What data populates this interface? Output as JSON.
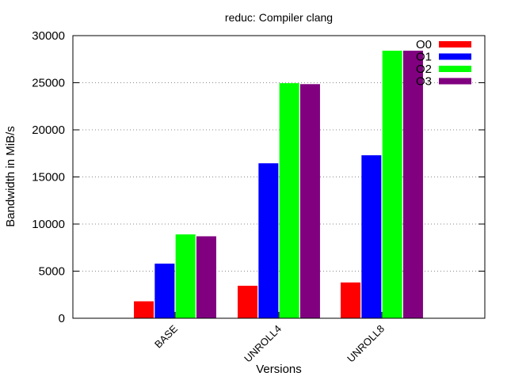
{
  "chart_data": {
    "type": "bar",
    "title": "reduc: Compiler clang",
    "xlabel": "Versions",
    "ylabel": "Bandwidth in MiB/s",
    "ylim": [
      0,
      30000
    ],
    "yticks": [
      0,
      5000,
      10000,
      15000,
      20000,
      25000,
      30000
    ],
    "categories": [
      "BASE",
      "UNROLL4",
      "UNROLL8"
    ],
    "series": [
      {
        "name": "O0",
        "color": "#ff0000",
        "values": [
          1800,
          3450,
          3800
        ]
      },
      {
        "name": "O1",
        "color": "#0000ff",
        "values": [
          5800,
          16450,
          17300
        ]
      },
      {
        "name": "O2",
        "color": "#00ff00",
        "values": [
          8900,
          24950,
          28400
        ]
      },
      {
        "name": "O3",
        "color": "#800080",
        "values": [
          8700,
          24850,
          28400
        ]
      }
    ],
    "grid": "y-dotted",
    "legend_position": "top-right"
  }
}
